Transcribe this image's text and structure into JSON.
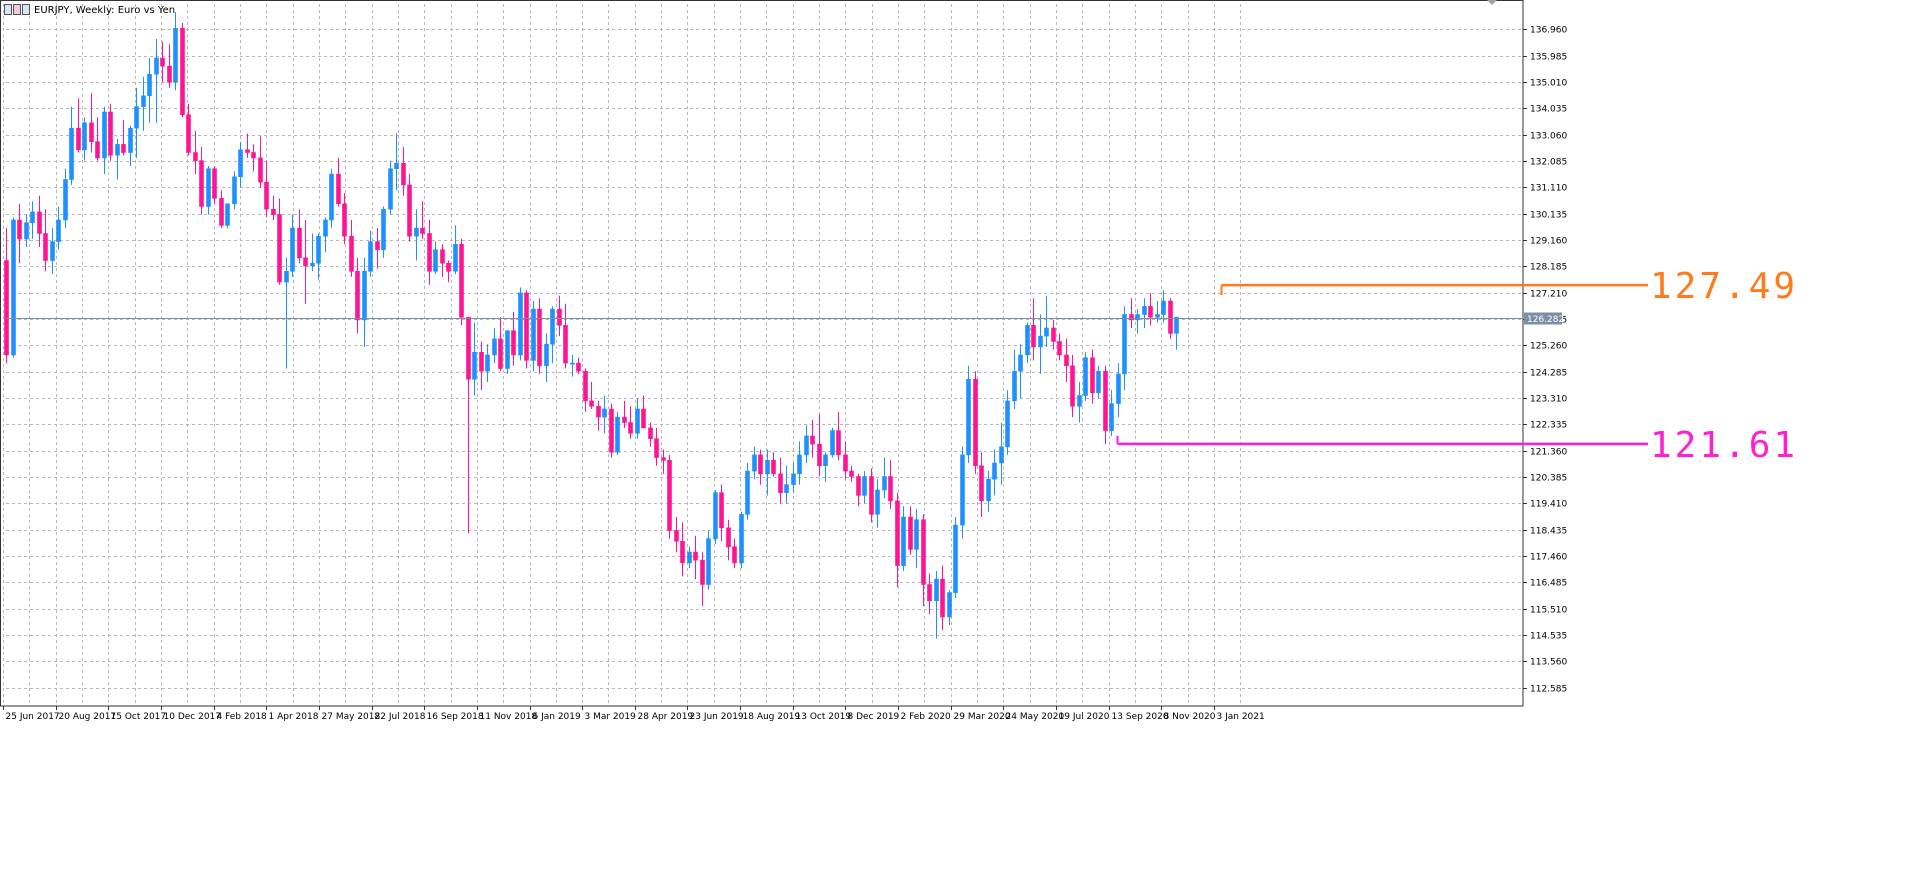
{
  "window": {
    "symbol_title": "EURJPY, Weekly:  Euro vs Yen",
    "icon_name": "chart-window-icon"
  },
  "colors": {
    "bull": "#1e90ff",
    "bear": "#ff1493",
    "grid": "#b8b8b8",
    "axis": "#333333",
    "price_line": "#7a8fa3",
    "price_label_bg": "#7a8fa3",
    "resistance": "#ff7a1a",
    "support": "#ff1ed2"
  },
  "chart_data": {
    "type": "candlestick",
    "title": "EURJPY, Weekly:  Euro vs Yen",
    "grid": true,
    "ylim": [
      111.9,
      137.9
    ],
    "y_ticks": [
      "136.960",
      "135.985",
      "135.010",
      "134.035",
      "133.060",
      "132.085",
      "131.110",
      "130.135",
      "129.160",
      "128.185",
      "127.210",
      "126.235",
      "125.260",
      "124.285",
      "123.310",
      "122.335",
      "121.360",
      "120.385",
      "119.410",
      "118.435",
      "117.460",
      "116.485",
      "115.510",
      "114.535",
      "113.560",
      "112.585"
    ],
    "x_labels": [
      "25 Jun 2017",
      "20 Aug 2017",
      "15 Oct 2017",
      "10 Dec 2017",
      "4 Feb 2018",
      "1 Apr 2018",
      "27 May 2018",
      "22 Jul 2018",
      "16 Sep 2018",
      "11 Nov 2018",
      "6 Jan 2019",
      "3 Mar 2019",
      "28 Apr 2019",
      "23 Jun 2019",
      "18 Aug 2019",
      "13 Oct 2019",
      "8 Dec 2019",
      "2 Feb 2020",
      "29 Mar 2020",
      "24 May 2020",
      "19 Jul 2020",
      "13 Sep 2020",
      "8 Nov 2020",
      "3 Jan 2021"
    ],
    "bull_color": "#1e90ff",
    "bear_color": "#ff1493",
    "candles": [
      [
        128.4,
        129.6,
        124.6,
        124.9
      ],
      [
        124.9,
        130.0,
        124.8,
        129.9
      ],
      [
        129.9,
        130.5,
        128.3,
        129.2
      ],
      [
        129.2,
        130.1,
        128.9,
        129.8
      ],
      [
        129.8,
        130.6,
        129.2,
        130.2
      ],
      [
        130.2,
        130.8,
        128.9,
        129.4
      ],
      [
        129.4,
        130.3,
        128.0,
        128.4
      ],
      [
        128.4,
        129.6,
        127.9,
        129.1
      ],
      [
        129.1,
        130.4,
        128.8,
        129.9
      ],
      [
        129.9,
        131.8,
        129.6,
        131.4
      ],
      [
        131.4,
        134.1,
        131.2,
        133.3
      ],
      [
        133.3,
        134.4,
        132.4,
        132.5
      ],
      [
        132.5,
        133.7,
        132.1,
        133.5
      ],
      [
        133.5,
        134.6,
        132.4,
        132.8
      ],
      [
        132.8,
        133.7,
        132.1,
        132.2
      ],
      [
        132.2,
        134.1,
        131.6,
        133.9
      ],
      [
        133.9,
        134.2,
        132.1,
        132.3
      ],
      [
        132.3,
        132.9,
        131.4,
        132.7
      ],
      [
        132.7,
        133.6,
        132.3,
        132.4
      ],
      [
        132.4,
        133.4,
        131.9,
        133.3
      ],
      [
        133.3,
        134.8,
        132.2,
        134.1
      ],
      [
        134.1,
        135.2,
        133.2,
        134.5
      ],
      [
        134.5,
        135.9,
        133.5,
        135.3
      ],
      [
        135.3,
        136.6,
        133.5,
        135.9
      ],
      [
        135.9,
        136.5,
        135.0,
        135.6
      ],
      [
        135.6,
        136.4,
        134.8,
        135.0
      ],
      [
        135.0,
        137.6,
        134.7,
        137.0
      ],
      [
        137.0,
        137.2,
        133.7,
        133.8
      ],
      [
        133.8,
        134.2,
        132.3,
        132.4
      ],
      [
        132.4,
        133.2,
        131.6,
        132.1
      ],
      [
        132.1,
        132.6,
        130.1,
        130.4
      ],
      [
        130.4,
        131.9,
        130.1,
        131.8
      ],
      [
        131.8,
        131.9,
        130.5,
        130.7
      ],
      [
        130.7,
        131.0,
        129.6,
        129.7
      ],
      [
        129.7,
        130.5,
        129.6,
        130.5
      ],
      [
        130.5,
        131.7,
        130.3,
        131.5
      ],
      [
        131.5,
        132.8,
        131.1,
        132.5
      ],
      [
        132.5,
        133.1,
        132.2,
        132.4
      ],
      [
        132.4,
        132.7,
        131.7,
        132.2
      ],
      [
        132.2,
        133.0,
        131.1,
        131.3
      ],
      [
        131.3,
        132.1,
        130.0,
        130.3
      ],
      [
        130.3,
        130.8,
        129.9,
        130.1
      ],
      [
        130.1,
        130.7,
        127.5,
        127.6
      ],
      [
        127.6,
        128.5,
        124.4,
        128.0
      ],
      [
        128.0,
        130.1,
        127.8,
        129.6
      ],
      [
        129.6,
        130.3,
        128.3,
        128.5
      ],
      [
        128.5,
        129.9,
        126.8,
        128.2
      ],
      [
        128.2,
        129.4,
        128.0,
        128.3
      ],
      [
        128.3,
        129.4,
        127.7,
        129.3
      ],
      [
        129.3,
        130.0,
        128.7,
        129.9
      ],
      [
        129.9,
        131.8,
        129.6,
        131.6
      ],
      [
        131.6,
        132.2,
        130.4,
        130.5
      ],
      [
        130.5,
        130.9,
        129.0,
        129.3
      ],
      [
        129.3,
        129.9,
        127.8,
        128.0
      ],
      [
        128.0,
        128.5,
        125.7,
        126.2
      ],
      [
        126.2,
        128.5,
        125.2,
        128.0
      ],
      [
        128.0,
        129.5,
        127.8,
        129.1
      ],
      [
        129.1,
        129.6,
        128.1,
        128.8
      ],
      [
        128.8,
        130.4,
        128.5,
        130.3
      ],
      [
        130.3,
        132.1,
        130.1,
        131.8
      ],
      [
        131.8,
        133.1,
        131.0,
        132.0
      ],
      [
        132.0,
        132.6,
        130.8,
        131.2
      ],
      [
        131.2,
        131.6,
        129.1,
        129.3
      ],
      [
        129.3,
        130.3,
        128.4,
        129.6
      ],
      [
        129.6,
        130.6,
        129.2,
        129.4
      ],
      [
        129.4,
        129.9,
        127.5,
        128.0
      ],
      [
        128.0,
        129.1,
        127.9,
        128.8
      ],
      [
        128.8,
        129.0,
        127.8,
        128.3
      ],
      [
        128.3,
        128.4,
        127.6,
        128.0
      ],
      [
        128.0,
        129.7,
        127.9,
        129.0
      ],
      [
        129.0,
        129.2,
        126.0,
        126.3
      ],
      [
        126.3,
        126.3,
        118.3,
        124.0
      ],
      [
        124.0,
        126.1,
        123.4,
        125.0
      ],
      [
        125.0,
        125.4,
        123.6,
        124.3
      ],
      [
        124.3,
        125.3,
        123.9,
        124.9
      ],
      [
        124.9,
        125.9,
        124.6,
        125.5
      ],
      [
        125.5,
        126.3,
        124.3,
        124.4
      ],
      [
        124.4,
        125.7,
        124.2,
        125.8
      ],
      [
        125.8,
        126.5,
        124.5,
        124.9
      ],
      [
        124.9,
        127.4,
        124.7,
        127.2
      ],
      [
        127.2,
        127.3,
        124.4,
        124.7
      ],
      [
        124.7,
        126.9,
        124.3,
        126.6
      ],
      [
        126.6,
        127.0,
        124.2,
        124.5
      ],
      [
        124.5,
        125.7,
        123.9,
        125.3
      ],
      [
        125.3,
        126.7,
        124.6,
        126.6
      ],
      [
        126.6,
        127.1,
        125.6,
        126.0
      ],
      [
        126.0,
        126.8,
        124.4,
        124.6
      ],
      [
        124.6,
        124.9,
        124.1,
        124.6
      ],
      [
        124.6,
        124.8,
        124.2,
        124.3
      ],
      [
        124.3,
        124.4,
        122.8,
        123.2
      ],
      [
        123.2,
        123.9,
        122.9,
        123.0
      ],
      [
        123.0,
        123.2,
        122.1,
        122.6
      ],
      [
        122.6,
        123.4,
        122.0,
        122.9
      ],
      [
        122.9,
        123.1,
        121.1,
        121.3
      ],
      [
        121.3,
        122.8,
        121.2,
        122.6
      ],
      [
        122.6,
        123.2,
        122.2,
        122.4
      ],
      [
        122.4,
        123.0,
        121.8,
        122.0
      ],
      [
        122.0,
        123.3,
        121.8,
        122.9
      ],
      [
        122.9,
        123.4,
        122.2,
        122.2
      ],
      [
        122.2,
        122.4,
        121.5,
        121.8
      ],
      [
        121.8,
        122.2,
        120.8,
        121.1
      ],
      [
        121.1,
        121.4,
        120.5,
        121.0
      ],
      [
        121.0,
        121.2,
        118.1,
        118.4
      ],
      [
        118.4,
        118.9,
        117.6,
        118.0
      ],
      [
        118.0,
        118.7,
        116.7,
        117.2
      ],
      [
        117.2,
        117.8,
        117.0,
        117.6
      ],
      [
        117.6,
        118.2,
        116.6,
        117.3
      ],
      [
        117.3,
        117.6,
        115.6,
        116.4
      ],
      [
        116.4,
        118.4,
        116.2,
        118.1
      ],
      [
        118.1,
        119.9,
        117.9,
        119.8
      ],
      [
        119.8,
        120.1,
        118.0,
        118.5
      ],
      [
        118.5,
        118.8,
        117.3,
        117.8
      ],
      [
        117.8,
        118.1,
        117.0,
        117.2
      ],
      [
        117.2,
        119.1,
        117.0,
        119.0
      ],
      [
        119.0,
        120.9,
        118.8,
        120.6
      ],
      [
        120.6,
        121.5,
        120.3,
        121.2
      ],
      [
        121.2,
        121.4,
        120.1,
        120.5
      ],
      [
        120.5,
        121.4,
        119.7,
        121.0
      ],
      [
        121.0,
        121.3,
        120.4,
        120.5
      ],
      [
        120.5,
        121.1,
        119.4,
        119.8
      ],
      [
        119.8,
        120.8,
        119.4,
        120.1
      ],
      [
        120.1,
        120.9,
        119.8,
        120.5
      ],
      [
        120.5,
        121.7,
        120.1,
        121.2
      ],
      [
        121.2,
        122.3,
        120.9,
        121.9
      ],
      [
        121.9,
        122.5,
        121.1,
        121.6
      ],
      [
        121.6,
        122.7,
        120.4,
        120.8
      ],
      [
        120.8,
        121.3,
        120.2,
        121.2
      ],
      [
        121.2,
        122.2,
        121.1,
        122.1
      ],
      [
        122.1,
        122.8,
        121.0,
        121.2
      ],
      [
        121.2,
        121.7,
        120.3,
        120.6
      ],
      [
        120.6,
        120.8,
        120.2,
        120.4
      ],
      [
        120.4,
        120.5,
        119.3,
        119.7
      ],
      [
        119.7,
        120.6,
        119.4,
        120.4
      ],
      [
        120.4,
        120.7,
        118.7,
        119.0
      ],
      [
        119.0,
        120.3,
        118.5,
        119.9
      ],
      [
        119.9,
        121.1,
        119.6,
        120.4
      ],
      [
        120.4,
        121.0,
        119.2,
        119.5
      ],
      [
        119.5,
        119.8,
        116.3,
        117.1
      ],
      [
        117.1,
        119.3,
        116.9,
        118.9
      ],
      [
        118.9,
        119.3,
        117.5,
        117.7
      ],
      [
        117.7,
        119.2,
        117.0,
        118.8
      ],
      [
        118.8,
        119.0,
        115.6,
        116.4
      ],
      [
        116.4,
        116.8,
        115.3,
        115.8
      ],
      [
        115.8,
        116.9,
        114.4,
        116.6
      ],
      [
        116.6,
        117.1,
        114.7,
        115.2
      ],
      [
        115.2,
        116.2,
        114.9,
        116.1
      ],
      [
        116.1,
        118.9,
        115.9,
        118.6
      ],
      [
        118.6,
        121.5,
        118.1,
        121.2
      ],
      [
        121.2,
        124.5,
        120.9,
        124.0
      ],
      [
        124.0,
        124.3,
        120.5,
        120.8
      ],
      [
        120.8,
        121.3,
        118.9,
        119.5
      ],
      [
        119.5,
        120.6,
        119.1,
        120.3
      ],
      [
        120.3,
        121.4,
        119.7,
        120.9
      ],
      [
        120.9,
        122.4,
        120.1,
        121.5
      ],
      [
        121.5,
        123.6,
        121.2,
        123.2
      ],
      [
        123.2,
        125.1,
        122.9,
        124.3
      ],
      [
        124.3,
        125.3,
        123.3,
        124.9
      ],
      [
        124.9,
        126.1,
        124.6,
        126.0
      ],
      [
        126.0,
        127.0,
        124.7,
        125.2
      ],
      [
        125.2,
        126.4,
        124.2,
        125.6
      ],
      [
        125.6,
        127.1,
        125.2,
        125.9
      ],
      [
        125.9,
        126.2,
        125.1,
        125.4
      ],
      [
        125.4,
        125.7,
        124.7,
        124.9
      ],
      [
        124.9,
        125.5,
        123.9,
        124.5
      ],
      [
        124.5,
        124.9,
        122.6,
        123.0
      ],
      [
        123.0,
        123.9,
        122.4,
        123.4
      ],
      [
        123.4,
        125.0,
        123.2,
        124.8
      ],
      [
        124.8,
        125.1,
        123.1,
        123.5
      ],
      [
        123.5,
        124.5,
        123.3,
        124.3
      ],
      [
        124.3,
        124.5,
        121.6,
        122.1
      ],
      [
        122.1,
        123.6,
        121.9,
        123.1
      ],
      [
        123.1,
        124.6,
        122.6,
        124.2
      ],
      [
        124.2,
        126.7,
        123.6,
        126.4
      ],
      [
        126.4,
        127.0,
        125.9,
        126.2
      ],
      [
        126.2,
        126.6,
        125.7,
        126.4
      ],
      [
        126.4,
        127.0,
        125.9,
        126.7
      ],
      [
        126.7,
        127.2,
        126.0,
        126.3
      ],
      [
        126.3,
        126.9,
        126.1,
        126.4
      ],
      [
        126.4,
        127.3,
        126.1,
        126.9
      ],
      [
        126.9,
        127.0,
        125.5,
        125.7
      ],
      [
        125.7,
        126.3,
        125.1,
        126.3
      ]
    ],
    "current_price": 126.282,
    "annotations": [
      {
        "label": "127.49",
        "value": 127.49,
        "from_index": 187,
        "color": "#ff7a1a"
      },
      {
        "label": "121.61",
        "value": 121.61,
        "from_index": 171,
        "color": "#ff1ed2"
      }
    ]
  }
}
